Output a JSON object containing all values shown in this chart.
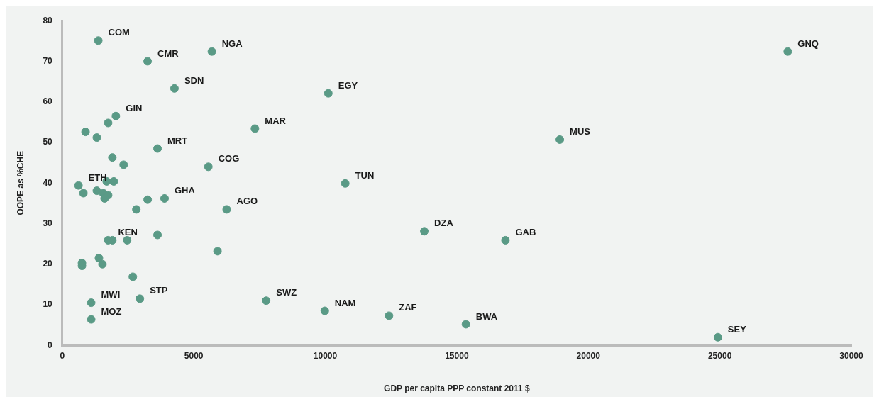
{
  "chart_data": {
    "type": "scatter",
    "xlabel": "GDP per capita PPP constant 2011 $",
    "ylabel": "OOPE as %CHE",
    "x": [
      1370,
      3245,
      5688,
      4266,
      2039,
      1744,
      885,
      1315,
      3622,
      1905,
      2334,
      5554,
      7325,
      10115,
      27582,
      18916,
      617,
      1690,
      1959,
      805,
      1315,
      1556,
      1744,
      1610,
      2817,
      3246,
      3890,
      6251,
      1744,
      1905,
      2468,
      3622,
      5903,
      1395,
      1529,
      750,
      750,
      2683,
      2951,
      1100,
      1100,
      7754,
      9981,
      12422,
      15347,
      24925,
      13764,
      16849,
      10759
    ],
    "series": [
      {
        "color": "#5a9a86",
        "values": [
          75.1,
          70.0,
          72.4,
          63.3,
          56.5,
          54.8,
          52.6,
          51.2,
          48.5,
          46.3,
          44.5,
          44.0,
          53.4,
          62.1,
          72.4,
          50.7,
          39.4,
          40.4,
          40.4,
          37.5,
          38.1,
          37.5,
          37.0,
          36.2,
          33.5,
          35.9,
          36.2,
          33.5,
          25.9,
          25.9,
          25.9,
          27.2,
          23.2,
          21.5,
          20.0,
          20.3,
          19.6,
          16.9,
          11.5,
          10.5,
          6.4,
          11.0,
          8.5,
          7.3,
          5.2,
          2.0,
          28.1,
          25.9,
          39.9
        ]
      }
    ],
    "xlim": [
      0,
      30000
    ],
    "xticks": [
      0,
      5000,
      10000,
      15000,
      20000,
      25000,
      30000
    ],
    "ylim": [
      0,
      80
    ],
    "yticks": [
      0,
      10,
      20,
      30,
      40,
      50,
      60,
      70,
      80
    ],
    "grid": false,
    "legend": false,
    "marker": "circle",
    "annotations": [
      {
        "text": "COM",
        "x": 1370,
        "y": 75.1
      },
      {
        "text": "CMR",
        "x": 3245,
        "y": 70.0
      },
      {
        "text": "NGA",
        "x": 5688,
        "y": 72.4
      },
      {
        "text": "SDN",
        "x": 4266,
        "y": 63.3
      },
      {
        "text": "GIN",
        "x": 2039,
        "y": 56.5
      },
      {
        "text": "MRT",
        "x": 3622,
        "y": 48.5
      },
      {
        "text": "COG",
        "x": 5554,
        "y": 44.0
      },
      {
        "text": "MAR",
        "x": 7325,
        "y": 53.4
      },
      {
        "text": "EGY",
        "x": 10115,
        "y": 62.1
      },
      {
        "text": "GNQ",
        "x": 27582,
        "y": 72.4
      },
      {
        "text": "MUS",
        "x": 18916,
        "y": 50.7
      },
      {
        "text": "ETH",
        "x": 617,
        "y": 39.4
      },
      {
        "text": "GHA",
        "x": 3890,
        "y": 36.2
      },
      {
        "text": "AGO",
        "x": 6251,
        "y": 33.5
      },
      {
        "text": "KEN",
        "x": 1744,
        "y": 25.9
      },
      {
        "text": "TUN",
        "x": 10759,
        "y": 39.9
      },
      {
        "text": "DZA",
        "x": 13764,
        "y": 28.1
      },
      {
        "text": "GAB",
        "x": 16849,
        "y": 25.9
      },
      {
        "text": "MWI",
        "x": 1100,
        "y": 10.5
      },
      {
        "text": "STP",
        "x": 2951,
        "y": 11.5
      },
      {
        "text": "MOZ",
        "x": 1100,
        "y": 6.4
      },
      {
        "text": "SWZ",
        "x": 7754,
        "y": 11.0
      },
      {
        "text": "NAM",
        "x": 9981,
        "y": 8.5
      },
      {
        "text": "ZAF",
        "x": 12422,
        "y": 7.3
      },
      {
        "text": "BWA",
        "x": 15347,
        "y": 5.2
      },
      {
        "text": "SEY",
        "x": 24925,
        "y": 2.0
      }
    ]
  }
}
